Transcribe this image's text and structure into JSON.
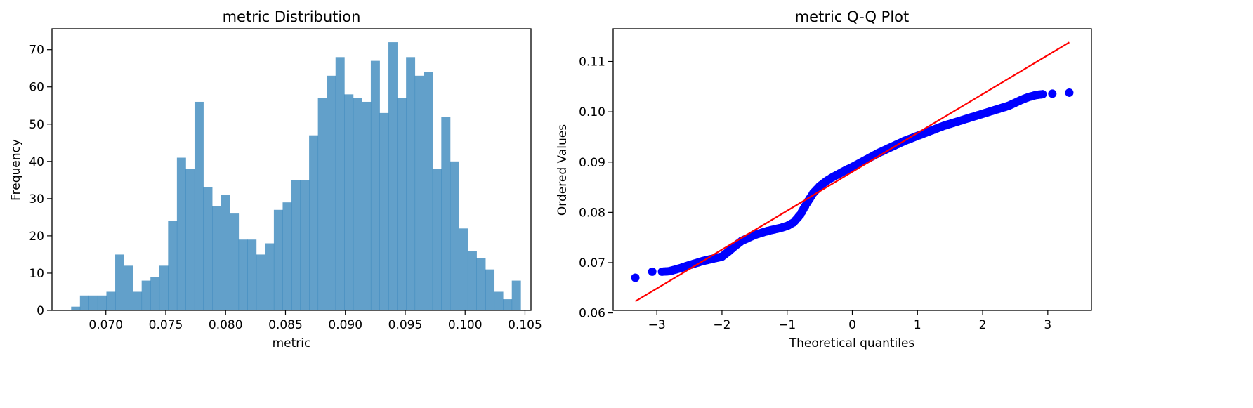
{
  "colors": {
    "hist_fill": "#1f77b4",
    "points": "#0000ff",
    "ref_line": "#ff0000"
  },
  "chart_data": [
    {
      "type": "bar",
      "title": "metric Distribution",
      "xlabel": "metric",
      "ylabel": "Frequency",
      "xlim": [
        0.0655,
        0.1055
      ],
      "ylim": [
        0,
        75.6
      ],
      "xticks": [
        0.07,
        0.075,
        0.08,
        0.085,
        0.09,
        0.095,
        0.1,
        0.105
      ],
      "xtick_labels": [
        "0.070",
        "0.075",
        "0.080",
        "0.085",
        "0.090",
        "0.095",
        "0.100",
        "0.105"
      ],
      "yticks": [
        0,
        10,
        20,
        30,
        40,
        50,
        60,
        70
      ],
      "ytick_labels": [
        "0",
        "10",
        "20",
        "30",
        "40",
        "50",
        "60",
        "70"
      ],
      "bin_start": 0.0671,
      "bin_width": 0.000736,
      "values": [
        1,
        4,
        4,
        4,
        5,
        15,
        12,
        5,
        8,
        9,
        12,
        24,
        41,
        38,
        56,
        33,
        28,
        31,
        26,
        19,
        19,
        15,
        18,
        27,
        29,
        35,
        35,
        47,
        57,
        63,
        68,
        58,
        57,
        56,
        67,
        53,
        72,
        57,
        68,
        63,
        64,
        38,
        52,
        40,
        22,
        16,
        14,
        11,
        5,
        3,
        8
      ]
    },
    {
      "type": "scatter",
      "title": "metric Q-Q Plot",
      "xlabel": "Theoretical quantiles",
      "ylabel": "Ordered Values",
      "xlim": [
        -3.67,
        3.67
      ],
      "ylim": [
        0.0605,
        0.1165
      ],
      "xticks": [
        -3,
        -2,
        -1,
        0,
        1,
        2,
        3
      ],
      "xtick_labels": [
        "−3",
        "−2",
        "−1",
        "0",
        "1",
        "2",
        "3"
      ],
      "yticks": [
        0.06,
        0.07,
        0.08,
        0.09,
        0.1,
        0.11
      ],
      "ytick_labels": [
        "0.06",
        "0.07",
        "0.08",
        "0.09",
        "0.10",
        "0.11"
      ],
      "points": {
        "x": [
          -3.33,
          -3.07,
          -2.92,
          -2.81,
          -2.72,
          -2.64,
          -2.57,
          -2.5,
          -2.4,
          -2.3,
          -2.2,
          -2.1,
          -2.0,
          -1.9,
          -1.8,
          -1.7,
          -1.6,
          -1.5,
          -1.4,
          -1.3,
          -1.2,
          -1.1,
          -1.0,
          -0.9,
          -0.8,
          -0.7,
          -0.6,
          -0.5,
          -0.4,
          -0.3,
          -0.2,
          -0.1,
          0.0,
          0.1,
          0.2,
          0.3,
          0.4,
          0.5,
          0.6,
          0.7,
          0.8,
          0.9,
          1.0,
          1.1,
          1.2,
          1.3,
          1.4,
          1.5,
          1.6,
          1.7,
          1.8,
          1.9,
          2.0,
          2.1,
          2.2,
          2.3,
          2.4,
          2.5,
          2.6,
          2.7,
          2.81,
          2.92,
          3.07,
          3.33
        ],
        "y": [
          0.067,
          0.0682,
          0.0682,
          0.0683,
          0.0686,
          0.0689,
          0.0692,
          0.0695,
          0.0699,
          0.0703,
          0.0706,
          0.0709,
          0.0712,
          0.0722,
          0.0733,
          0.0743,
          0.0749,
          0.0755,
          0.0759,
          0.0763,
          0.0766,
          0.0769,
          0.0773,
          0.078,
          0.0795,
          0.0818,
          0.0838,
          0.0852,
          0.0862,
          0.087,
          0.0877,
          0.0884,
          0.089,
          0.0897,
          0.0904,
          0.0911,
          0.0918,
          0.0924,
          0.093,
          0.0936,
          0.0942,
          0.0947,
          0.0952,
          0.0957,
          0.0962,
          0.0967,
          0.0972,
          0.0976,
          0.098,
          0.0984,
          0.0988,
          0.0992,
          0.0996,
          0.1,
          0.1004,
          0.1008,
          0.1012,
          0.1018,
          0.1024,
          0.1029,
          0.1033,
          0.1035,
          0.1036,
          0.1038
        ]
      },
      "reference_line": {
        "x": [
          -3.33,
          3.33
        ],
        "y": [
          0.0623,
          0.1138
        ]
      }
    }
  ]
}
